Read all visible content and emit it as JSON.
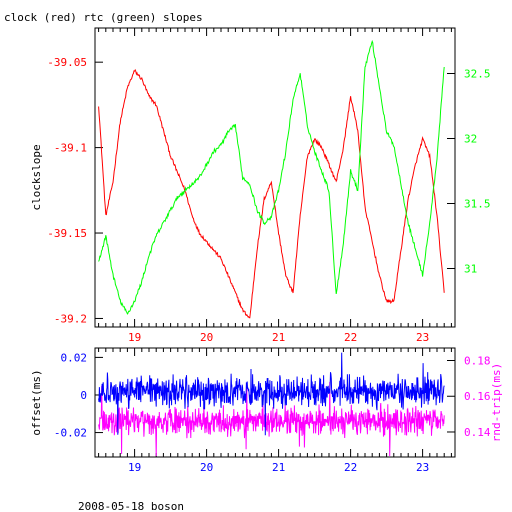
{
  "title": "clock (red) rtc (green) slopes",
  "footer": "2008-05-18 boson",
  "colors": {
    "clock": "#ff0000",
    "rtc": "#00ff00",
    "offset": "#0000ff",
    "roundtrip": "#ff00ff",
    "axis": "#000000"
  },
  "chart_data": [
    {
      "type": "line",
      "title": "clock (red) rtc (green) slopes",
      "xlabel": "",
      "ylabel": "clockslope",
      "y2label": "",
      "xlim": [
        18.45,
        23.45
      ],
      "ylim": [
        -39.205,
        -39.03
      ],
      "y2lim": [
        30.55,
        32.85
      ],
      "xticks": [
        19,
        20,
        21,
        22,
        23
      ],
      "xtick_labels": [
        "19",
        "20",
        "21",
        "22",
        "23"
      ],
      "yticks": [
        -39.05,
        -39.1,
        -39.15,
        -39.2
      ],
      "ytick_labels": [
        "-39.05",
        "-39.1",
        "-39.15",
        "-39.2"
      ],
      "y2ticks": [
        32.5,
        32,
        31.5,
        31
      ],
      "y2tick_labels": [
        "32.5",
        "32",
        "31.5",
        "31"
      ],
      "series": [
        {
          "axis": "left",
          "color": "#ff0000",
          "x": [
            18.5,
            18.6,
            18.7,
            18.8,
            18.9,
            19.0,
            19.1,
            19.2,
            19.3,
            19.4,
            19.5,
            19.6,
            19.7,
            19.8,
            19.9,
            20.0,
            20.1,
            20.2,
            20.3,
            20.4,
            20.5,
            20.6,
            20.7,
            20.8,
            20.9,
            21.0,
            21.1,
            21.2,
            21.3,
            21.4,
            21.5,
            21.6,
            21.7,
            21.8,
            21.9,
            22.0,
            22.1,
            22.2,
            22.3,
            22.4,
            22.5,
            22.6,
            22.7,
            22.8,
            22.9,
            23.0,
            23.1,
            23.2,
            23.3
          ],
          "y": [
            -39.075,
            -39.14,
            -39.12,
            -39.085,
            -39.065,
            -39.055,
            -39.06,
            -39.07,
            -39.075,
            -39.09,
            -39.105,
            -39.115,
            -39.125,
            -39.14,
            -39.15,
            -39.155,
            -39.16,
            -39.165,
            -39.175,
            -39.185,
            -39.195,
            -39.2,
            -39.16,
            -39.13,
            -39.12,
            -39.15,
            -39.175,
            -39.185,
            -39.14,
            -39.105,
            -39.095,
            -39.1,
            -39.11,
            -39.12,
            -39.1,
            -39.07,
            -39.09,
            -39.135,
            -39.155,
            -39.175,
            -39.19,
            -39.19,
            -39.16,
            -39.13,
            -39.11,
            -39.095,
            -39.105,
            -39.14,
            -39.185
          ]
        },
        {
          "axis": "right",
          "color": "#00ff00",
          "x": [
            18.5,
            18.6,
            18.7,
            18.8,
            18.9,
            19.0,
            19.1,
            19.2,
            19.3,
            19.4,
            19.5,
            19.6,
            19.7,
            19.8,
            19.9,
            20.0,
            20.1,
            20.2,
            20.3,
            20.4,
            20.5,
            20.6,
            20.7,
            20.8,
            20.9,
            21.0,
            21.1,
            21.2,
            21.3,
            21.4,
            21.5,
            21.6,
            21.7,
            21.8,
            21.9,
            22.0,
            22.1,
            22.2,
            22.3,
            22.4,
            22.5,
            22.6,
            22.7,
            22.8,
            22.9,
            23.0,
            23.1,
            23.2,
            23.3
          ],
          "y": [
            31.05,
            31.25,
            30.95,
            30.75,
            30.65,
            30.75,
            30.9,
            31.1,
            31.25,
            31.35,
            31.45,
            31.55,
            31.6,
            31.65,
            31.7,
            31.8,
            31.9,
            31.95,
            32.05,
            32.1,
            31.7,
            31.65,
            31.45,
            31.35,
            31.4,
            31.6,
            31.9,
            32.3,
            32.5,
            32.1,
            31.9,
            31.75,
            31.6,
            30.8,
            31.2,
            31.75,
            31.6,
            32.55,
            32.75,
            32.4,
            32.05,
            31.95,
            31.65,
            31.35,
            31.15,
            30.95,
            31.35,
            31.85,
            32.55
          ]
        }
      ]
    },
    {
      "type": "line",
      "title": "",
      "xlabel": "",
      "ylabel": "offset(ms)",
      "y2label": "rnd-trip(ms)",
      "xlim": [
        18.45,
        23.45
      ],
      "ylim": [
        -0.033,
        0.025
      ],
      "y2lim": [
        0.126,
        0.187
      ],
      "xticks": [
        19,
        20,
        21,
        22,
        23
      ],
      "xtick_labels": [
        "19",
        "20",
        "21",
        "22",
        "23"
      ],
      "yticks": [
        0.02,
        0,
        -0.02
      ],
      "ytick_labels": [
        "0.02",
        "0",
        "-0.02"
      ],
      "y2ticks": [
        0.18,
        0.16,
        0.14
      ],
      "y2tick_labels": [
        "0.18",
        "0.16",
        "0.14"
      ],
      "series": [
        {
          "axis": "left",
          "color": "#0000ff",
          "x_range": [
            18.5,
            23.3
          ],
          "mean": 0.002,
          "spread": 0.012
        },
        {
          "axis": "right",
          "color": "#ff00ff",
          "x_range": [
            18.5,
            23.3
          ],
          "mean": 0.146,
          "spread": 0.012
        }
      ]
    }
  ]
}
